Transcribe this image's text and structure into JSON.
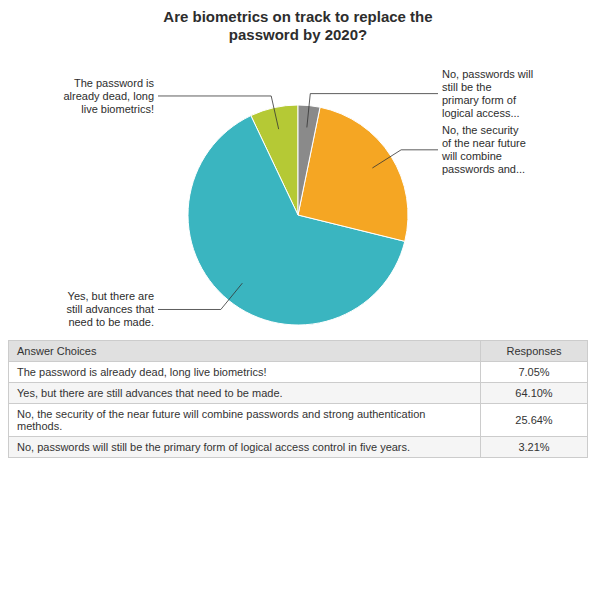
{
  "chart_data": {
    "type": "pie",
    "title": "Are biometrics on track to replace the\npassword by 2020?",
    "categories": [
      "The password is\nalready dead, long\nlive biometrics!",
      "Yes, but there are\nstill advances that\nneed to be made.",
      "No, the security\nof the near future\nwill combine\npasswords and...",
      "No, passwords will\nstill be the\nprimary form of\nlogical access..."
    ],
    "values": [
      7.05,
      64.1,
      25.64,
      3.21
    ],
    "value_labels": [
      "7.05%",
      "64.10%",
      "25.64%",
      "3.21%"
    ],
    "colors": [
      "#b5c935",
      "#3ab5c0",
      "#f5a623",
      "#8a8a8a"
    ],
    "table": {
      "header": [
        "Answer Choices",
        "Responses"
      ],
      "rows": [
        "The password is already dead, long live biometrics!",
        "Yes, but there are still advances that need to be made.",
        "No, the security of the near future will combine passwords and strong authentication\nmethods.",
        "No, passwords will still be the primary form of logical access control in five years."
      ]
    }
  }
}
